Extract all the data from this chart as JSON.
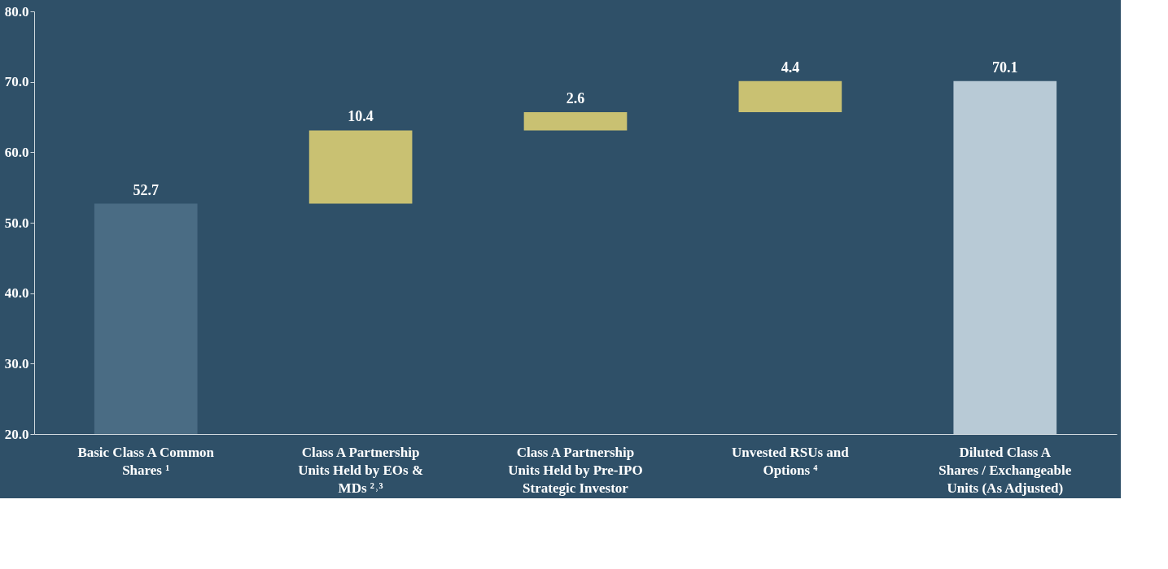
{
  "chart_data": {
    "type": "bar",
    "categories": [
      "Basic Class A Common Shares ¹",
      "Class A Partnership Units Held by EOs & MDs ²˒³",
      "Class A Partnership Units Held by Pre-IPO Strategic Investor",
      "Unvested RSUs and Options ⁴",
      "Diluted Class A Shares / Exchangeable Units (As Adjusted)"
    ],
    "values": [
      52.7,
      10.4,
      2.6,
      4.4,
      70.1
    ],
    "base": [
      null,
      52.7,
      63.1,
      65.7,
      null
    ],
    "colors": [
      "#4a6c84",
      "#c9c172",
      "#c9c172",
      "#c9c172",
      "#b8cad6"
    ],
    "data_labels": true,
    "ylim": [
      20,
      80
    ],
    "yticks": [
      {
        "value": 20,
        "label": "20.0"
      },
      {
        "value": 30,
        "label": "30.0"
      },
      {
        "value": 40,
        "label": "40.0"
      },
      {
        "value": 50,
        "label": "50.0"
      },
      {
        "value": 60,
        "label": "60.0"
      },
      {
        "value": 70,
        "label": "70.0"
      },
      {
        "value": 80,
        "label": "80.0"
      }
    ],
    "grid": false
  }
}
